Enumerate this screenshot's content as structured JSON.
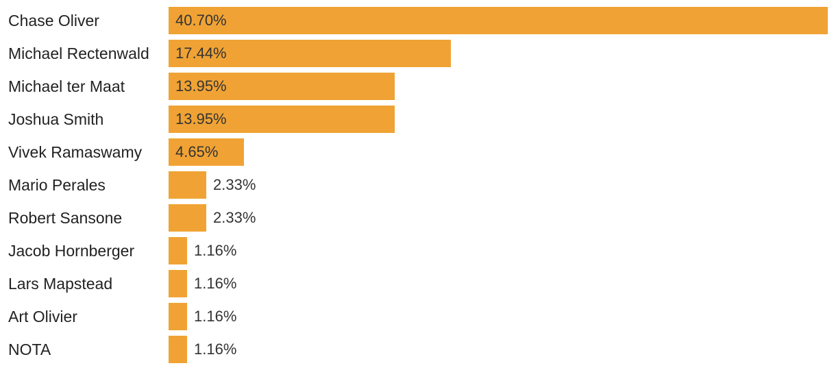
{
  "chart_data": {
    "type": "bar",
    "orientation": "horizontal",
    "categories": [
      "Chase Oliver",
      "Michael Rectenwald",
      "Michael ter Maat",
      "Joshua Smith",
      "Vivek Ramaswamy",
      "Mario Perales",
      "Robert Sansone",
      "Jacob Hornberger",
      "Lars Mapstead",
      "Art Olivier",
      "NOTA"
    ],
    "values": [
      40.7,
      17.44,
      13.95,
      13.95,
      4.65,
      2.33,
      2.33,
      1.16,
      1.16,
      1.16,
      1.16
    ],
    "value_labels": [
      "40.70%",
      "17.44%",
      "13.95%",
      "13.95%",
      "4.65%",
      "2.33%",
      "2.33%",
      "1.16%",
      "1.16%",
      "1.16%",
      "1.16%"
    ],
    "unit": "%",
    "grid": false,
    "legend": "none",
    "bar_color": "#F0A334",
    "label_color": "#333333"
  }
}
